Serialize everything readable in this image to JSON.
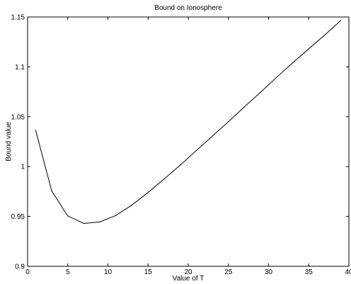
{
  "chart_data": {
    "type": "line",
    "title": "Bound on Ionosphere",
    "xlabel": "Value of T",
    "ylabel": "Bound value",
    "xlim": [
      0,
      40
    ],
    "ylim": [
      0.9,
      1.15
    ],
    "x_ticks": [
      0,
      5,
      10,
      15,
      20,
      25,
      30,
      35,
      40
    ],
    "y_ticks": [
      0.9,
      0.95,
      1,
      1.05,
      1.1,
      1.15
    ],
    "x_tick_labels": [
      "0",
      "5",
      "10",
      "15",
      "20",
      "25",
      "30",
      "35",
      "40"
    ],
    "y_tick_labels": [
      "0.9",
      "0.95",
      "1",
      "1.05",
      "1.1",
      "1.15"
    ],
    "grid": false,
    "line_color": "#000000",
    "series": [
      {
        "x": [
          1,
          3,
          5,
          7,
          9,
          11,
          13,
          15,
          17,
          19,
          21,
          23,
          25,
          27,
          29,
          31,
          33,
          35,
          37,
          39
        ],
        "values": [
          1.0365,
          0.9755,
          0.9505,
          0.943,
          0.9445,
          0.951,
          0.9615,
          0.974,
          0.9875,
          1.0015,
          1.016,
          1.0305,
          1.045,
          1.06,
          1.0745,
          1.0895,
          1.104,
          1.118,
          1.132,
          1.1465
        ]
      }
    ]
  }
}
